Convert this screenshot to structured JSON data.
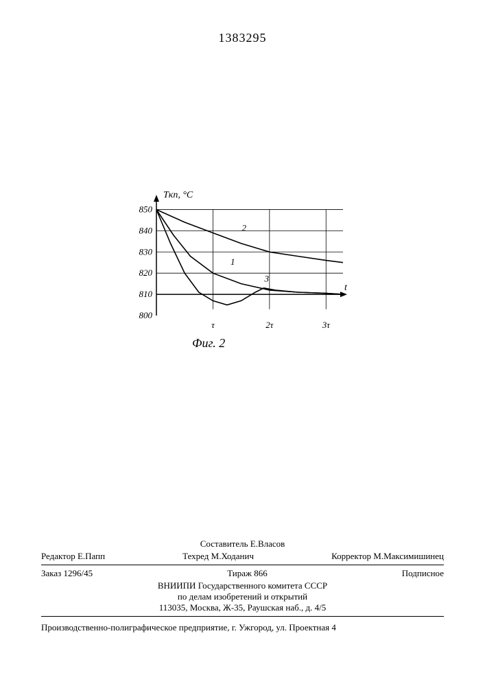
{
  "page_number": "1383295",
  "chart": {
    "type": "line",
    "y_axis_label": "Tкп, °C",
    "x_axis_label": "t",
    "y_ticks": [
      800,
      810,
      820,
      830,
      840,
      850
    ],
    "y_tick_labels": [
      "800",
      "810",
      "820",
      "830",
      "840",
      "850"
    ],
    "x_ticks": [
      0,
      1,
      2,
      3
    ],
    "x_tick_labels": [
      "",
      "τ",
      "2τ",
      "3τ"
    ],
    "ylim": [
      800,
      855
    ],
    "xlim": [
      0,
      3.3
    ],
    "background_color": "#ffffff",
    "axis_color": "#000000",
    "grid_color": "#000000",
    "line_width": 1.6,
    "grid_width": 0.8,
    "label_fontsize": 14,
    "tick_fontsize": 13,
    "series": [
      {
        "name": "1",
        "label_pos": {
          "x": 1.35,
          "y": 824
        },
        "color": "#000000",
        "points": [
          {
            "x": 0.0,
            "y": 850
          },
          {
            "x": 0.3,
            "y": 838
          },
          {
            "x": 0.6,
            "y": 828
          },
          {
            "x": 1.0,
            "y": 820
          },
          {
            "x": 1.5,
            "y": 815
          },
          {
            "x": 2.0,
            "y": 812
          },
          {
            "x": 2.5,
            "y": 811
          },
          {
            "x": 3.0,
            "y": 810.5
          },
          {
            "x": 3.3,
            "y": 810
          }
        ]
      },
      {
        "name": "2",
        "label_pos": {
          "x": 1.55,
          "y": 840
        },
        "color": "#000000",
        "points": [
          {
            "x": 0.0,
            "y": 850
          },
          {
            "x": 0.5,
            "y": 844
          },
          {
            "x": 1.0,
            "y": 839
          },
          {
            "x": 1.5,
            "y": 834
          },
          {
            "x": 2.0,
            "y": 830
          },
          {
            "x": 2.5,
            "y": 828
          },
          {
            "x": 3.0,
            "y": 826
          },
          {
            "x": 3.3,
            "y": 825
          }
        ]
      },
      {
        "name": "3",
        "label_pos": {
          "x": 1.95,
          "y": 816
        },
        "color": "#000000",
        "points": [
          {
            "x": 0.0,
            "y": 850
          },
          {
            "x": 0.25,
            "y": 834
          },
          {
            "x": 0.5,
            "y": 820
          },
          {
            "x": 0.75,
            "y": 811
          },
          {
            "x": 1.0,
            "y": 807
          },
          {
            "x": 1.25,
            "y": 805
          },
          {
            "x": 1.5,
            "y": 807
          },
          {
            "x": 1.75,
            "y": 811
          },
          {
            "x": 1.9,
            "y": 813
          },
          {
            "x": 2.1,
            "y": 812
          },
          {
            "x": 2.5,
            "y": 811
          },
          {
            "x": 3.0,
            "y": 810.5
          },
          {
            "x": 3.3,
            "y": 810
          }
        ]
      }
    ]
  },
  "caption": "Фиг. 2",
  "footer": {
    "compiler": "Составитель Е.Власов",
    "editor": "Редактор Е.Папп",
    "techred": "Техред М.Ходанич",
    "corrector": "Корректор М.Максимишинец",
    "order": "Заказ 1296/45",
    "tirage": "Тираж 866",
    "subscription": "Подписное",
    "org1": "ВНИИПИ Государственного комитета СССР",
    "org2": "по делам изобретений и открытий",
    "address": "113035, Москва, Ж-35, Раушская наб., д. 4/5",
    "printer": "Производственно-полиграфическое предприятие, г. Ужгород, ул. Проектная 4"
  }
}
